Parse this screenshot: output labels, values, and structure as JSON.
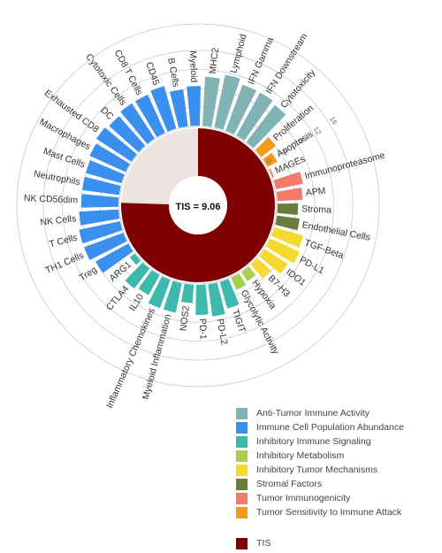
{
  "chart_data": {
    "type": "radial-bar",
    "center_label": "TIS = 9.06",
    "tis": {
      "name": "TIS",
      "value": 9.06,
      "color": "#7f0000"
    },
    "radial_ticks": [
      "0",
      "4",
      "8",
      "12",
      "16"
    ],
    "radial_max": 16,
    "groups": [
      {
        "name": "Anti-Tumor Immune Activity",
        "color": "#7fb3b4"
      },
      {
        "name": "Immune Cell Population Abundance",
        "color": "#3b8fef"
      },
      {
        "name": "Inhibitory Immune Signaling",
        "color": "#3cb8ad"
      },
      {
        "name": "Inhibitory Metabolism",
        "color": "#a9cf52"
      },
      {
        "name": "Inhibitory Tumor Mechanisms",
        "color": "#f6d92e"
      },
      {
        "name": "Stromal Factors",
        "color": "#6b7b3b"
      },
      {
        "name": "Tumor Immunogenicity",
        "color": "#f47a6b"
      },
      {
        "name": "Tumor Sensitivity to Immune Attack",
        "color": "#f59a1b"
      }
    ],
    "signatures": [
      {
        "label": "MHC2",
        "group": 0,
        "value": 10.5
      },
      {
        "label": "Lymphoid",
        "group": 0,
        "value": 11.5
      },
      {
        "label": "IFN Gamma",
        "group": 0,
        "value": 10.5
      },
      {
        "label": "IFN Downstream",
        "group": 0,
        "value": 10.5
      },
      {
        "label": "Cytotoxicity",
        "group": 0,
        "value": 10.0
      },
      {
        "label": "Proliferation",
        "group": 7,
        "value": 4.0
      },
      {
        "label": "Apoptosis",
        "group": 7,
        "value": 2.5
      },
      {
        "label": "MAGEs",
        "group": 6,
        "value": 0.5
      },
      {
        "label": "Immunoproteasome",
        "group": 6,
        "value": 6.0
      },
      {
        "label": "APM",
        "group": 6,
        "value": 5.5
      },
      {
        "label": "Stroma",
        "group": 5,
        "value": 4.5
      },
      {
        "label": "Endothelial Cells",
        "group": 5,
        "value": 5.0
      },
      {
        "label": "TGF-Beta",
        "group": 4,
        "value": 6.5
      },
      {
        "label": "PD-L1",
        "group": 4,
        "value": 7.0
      },
      {
        "label": "IDO1",
        "group": 4,
        "value": 6.0
      },
      {
        "label": "B7-H3",
        "group": 4,
        "value": 4.0
      },
      {
        "label": "Hypoxia",
        "group": 3,
        "value": 2.5
      },
      {
        "label": "Glycolytic Activity",
        "group": 3,
        "value": 3.0
      },
      {
        "label": "TIGIT",
        "group": 2,
        "value": 6.0
      },
      {
        "label": "PD-L2",
        "group": 2,
        "value": 7.0
      },
      {
        "label": "PD-1",
        "group": 2,
        "value": 6.5
      },
      {
        "label": "NOS2",
        "group": 2,
        "value": 4.0
      },
      {
        "label": "Myeloid Inflammation",
        "group": 2,
        "value": 6.5
      },
      {
        "label": "Inflammatory Chemokines",
        "group": 2,
        "value": 6.5
      },
      {
        "label": "IL10",
        "group": 2,
        "value": 5.0
      },
      {
        "label": "CTLA4",
        "group": 2,
        "value": 5.5
      },
      {
        "label": "ARG1",
        "group": 2,
        "value": 1.5
      },
      {
        "label": "Treg",
        "group": 1,
        "value": 8.0
      },
      {
        "label": "TH1 Cells",
        "group": 1,
        "value": 9.0
      },
      {
        "label": "T Cells",
        "group": 1,
        "value": 9.0
      },
      {
        "label": "NK Cells",
        "group": 1,
        "value": 8.5
      },
      {
        "label": "NK CD56dim",
        "group": 1,
        "value": 8.0
      },
      {
        "label": "Neutrophils",
        "group": 1,
        "value": 8.0
      },
      {
        "label": "Mast Cells",
        "group": 1,
        "value": 8.0
      },
      {
        "label": "Macrophages",
        "group": 1,
        "value": 8.5
      },
      {
        "label": "Exhausted CD8",
        "group": 1,
        "value": 9.0
      },
      {
        "label": "DC",
        "group": 1,
        "value": 8.5
      },
      {
        "label": "Cytotoxic Cells",
        "group": 1,
        "value": 9.0
      },
      {
        "label": "CD8 T Cells",
        "group": 1,
        "value": 9.0
      },
      {
        "label": "CD45",
        "group": 1,
        "value": 9.5
      },
      {
        "label": "B Cells",
        "group": 1,
        "value": 8.0
      },
      {
        "label": "Myeloid",
        "group": 1,
        "value": 8.5
      }
    ]
  }
}
